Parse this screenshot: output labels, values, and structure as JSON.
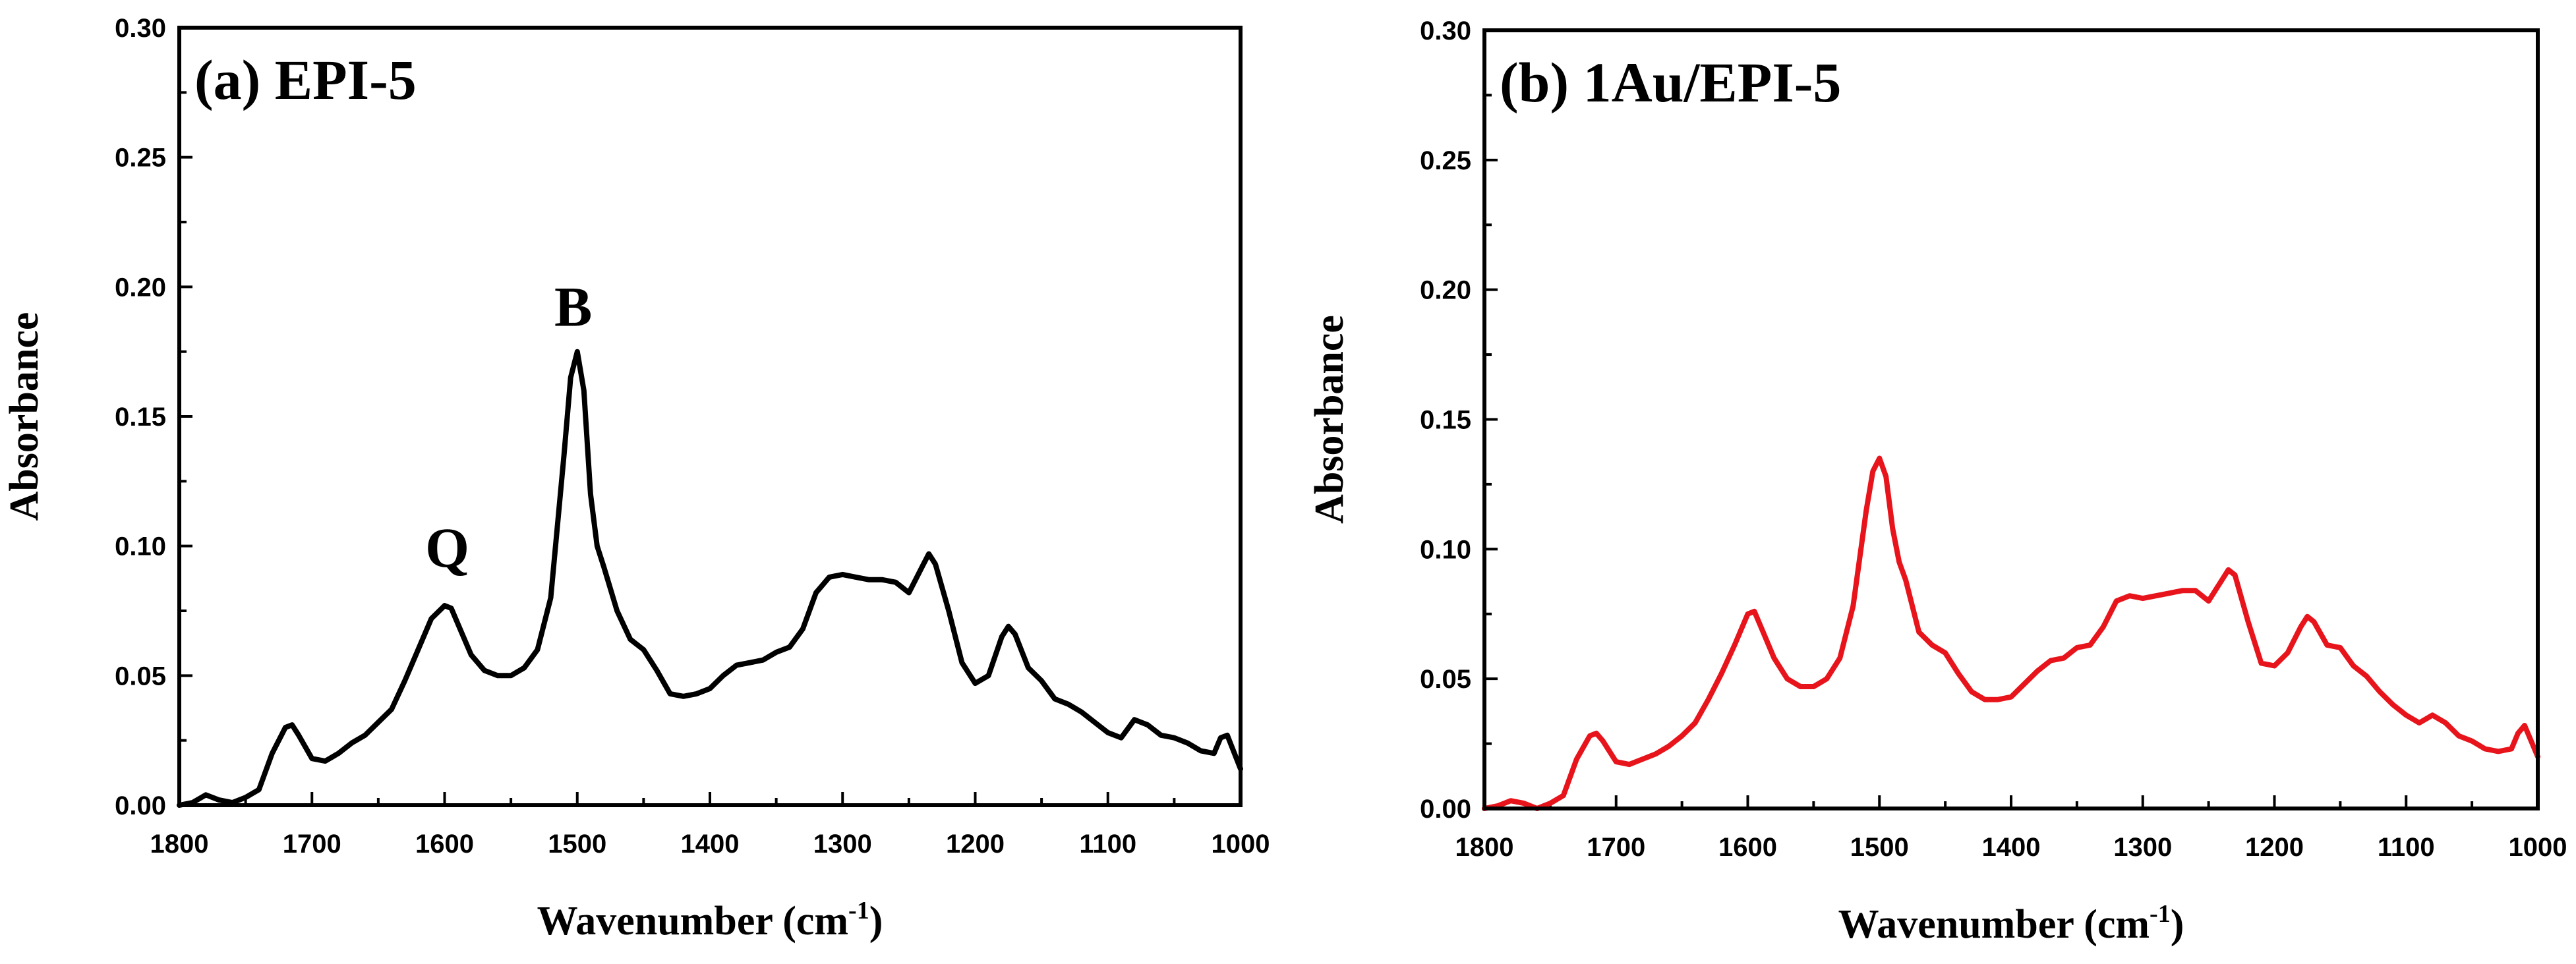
{
  "chart_data": [
    {
      "type": "line",
      "title": "(a) EPI-5",
      "xlabel": "Wavenumber (cm",
      "xlabel_sup": "-1",
      "xlabel_end": ")",
      "ylabel": "Absorbance",
      "xlim": [
        1800,
        1000
      ],
      "ylim": [
        0,
        0.3
      ],
      "xticks": [
        "1800",
        "1700",
        "1600",
        "1500",
        "1400",
        "1300",
        "1200",
        "1100",
        "1000"
      ],
      "yticks": [
        "0.00",
        "0.05",
        "0.10",
        "0.15",
        "0.20",
        "0.25",
        "0.30"
      ],
      "annotations": [
        {
          "text": "Q",
          "x": 1598,
          "y": 0.092
        },
        {
          "text": "B",
          "x": 1503,
          "y": 0.185
        }
      ],
      "series": [
        {
          "name": "EPI-5",
          "color": "#000000",
          "x": [
            1800,
            1790,
            1780,
            1770,
            1760,
            1750,
            1740,
            1730,
            1720,
            1715,
            1710,
            1700,
            1690,
            1680,
            1670,
            1660,
            1650,
            1640,
            1630,
            1620,
            1610,
            1600,
            1595,
            1590,
            1580,
            1570,
            1560,
            1550,
            1540,
            1530,
            1520,
            1510,
            1505,
            1500,
            1495,
            1490,
            1485,
            1480,
            1470,
            1460,
            1450,
            1440,
            1430,
            1420,
            1410,
            1400,
            1390,
            1380,
            1370,
            1360,
            1350,
            1340,
            1330,
            1320,
            1310,
            1300,
            1290,
            1280,
            1270,
            1260,
            1250,
            1240,
            1235,
            1230,
            1220,
            1210,
            1200,
            1190,
            1180,
            1175,
            1170,
            1160,
            1150,
            1140,
            1130,
            1120,
            1110,
            1100,
            1090,
            1080,
            1070,
            1060,
            1050,
            1040,
            1030,
            1020,
            1015,
            1010,
            1000
          ],
          "y": [
            0.0,
            0.001,
            0.004,
            0.002,
            0.001,
            0.003,
            0.006,
            0.02,
            0.03,
            0.031,
            0.027,
            0.018,
            0.017,
            0.02,
            0.024,
            0.027,
            0.032,
            0.037,
            0.048,
            0.06,
            0.072,
            0.077,
            0.076,
            0.07,
            0.058,
            0.052,
            0.05,
            0.05,
            0.053,
            0.06,
            0.08,
            0.135,
            0.165,
            0.175,
            0.16,
            0.12,
            0.1,
            0.092,
            0.075,
            0.064,
            0.06,
            0.052,
            0.043,
            0.042,
            0.043,
            0.045,
            0.05,
            0.054,
            0.055,
            0.056,
            0.059,
            0.061,
            0.068,
            0.082,
            0.088,
            0.089,
            0.088,
            0.087,
            0.087,
            0.086,
            0.082,
            0.092,
            0.097,
            0.093,
            0.075,
            0.055,
            0.047,
            0.05,
            0.065,
            0.069,
            0.066,
            0.053,
            0.048,
            0.041,
            0.039,
            0.036,
            0.032,
            0.028,
            0.026,
            0.033,
            0.031,
            0.027,
            0.026,
            0.024,
            0.021,
            0.02,
            0.026,
            0.027,
            0.014
          ]
        }
      ]
    },
    {
      "type": "line",
      "title": "(b) 1Au/EPI-5",
      "xlabel": "Wavenumber (cm",
      "xlabel_sup": "-1",
      "xlabel_end": ")",
      "ylabel": "Absorbance",
      "xlim": [
        1800,
        1000
      ],
      "ylim": [
        0,
        0.3
      ],
      "xticks": [
        "1800",
        "1700",
        "1600",
        "1500",
        "1400",
        "1300",
        "1200",
        "1100",
        "1000"
      ],
      "yticks": [
        "0.00",
        "0.05",
        "0.10",
        "0.15",
        "0.20",
        "0.25",
        "0.30"
      ],
      "annotations": [],
      "series": [
        {
          "name": "1Au/EPI-5",
          "color": "#e8141b",
          "x": [
            1800,
            1790,
            1780,
            1770,
            1760,
            1750,
            1740,
            1730,
            1720,
            1715,
            1710,
            1700,
            1690,
            1680,
            1670,
            1660,
            1650,
            1640,
            1630,
            1620,
            1610,
            1600,
            1595,
            1590,
            1580,
            1570,
            1560,
            1550,
            1540,
            1530,
            1520,
            1510,
            1505,
            1500,
            1495,
            1490,
            1485,
            1480,
            1470,
            1460,
            1450,
            1440,
            1430,
            1420,
            1410,
            1400,
            1390,
            1380,
            1370,
            1360,
            1350,
            1340,
            1330,
            1320,
            1310,
            1300,
            1290,
            1280,
            1270,
            1260,
            1250,
            1240,
            1235,
            1230,
            1220,
            1210,
            1200,
            1190,
            1180,
            1175,
            1170,
            1160,
            1150,
            1140,
            1130,
            1120,
            1110,
            1100,
            1090,
            1080,
            1070,
            1060,
            1050,
            1040,
            1030,
            1020,
            1015,
            1010,
            1000
          ],
          "y": [
            0.0,
            0.001,
            0.003,
            0.002,
            0.0,
            0.002,
            0.005,
            0.019,
            0.028,
            0.029,
            0.026,
            0.018,
            0.017,
            0.019,
            0.021,
            0.024,
            0.028,
            0.033,
            0.042,
            0.052,
            0.063,
            0.075,
            0.076,
            0.07,
            0.058,
            0.05,
            0.047,
            0.047,
            0.05,
            0.058,
            0.078,
            0.115,
            0.13,
            0.135,
            0.128,
            0.108,
            0.095,
            0.088,
            0.068,
            0.063,
            0.06,
            0.052,
            0.045,
            0.042,
            0.042,
            0.043,
            0.048,
            0.053,
            0.057,
            0.058,
            0.062,
            0.063,
            0.07,
            0.08,
            0.082,
            0.081,
            0.082,
            0.083,
            0.084,
            0.084,
            0.08,
            0.088,
            0.092,
            0.09,
            0.072,
            0.056,
            0.055,
            0.06,
            0.07,
            0.074,
            0.072,
            0.063,
            0.062,
            0.055,
            0.051,
            0.045,
            0.04,
            0.036,
            0.033,
            0.036,
            0.033,
            0.028,
            0.026,
            0.023,
            0.022,
            0.023,
            0.029,
            0.032,
            0.02
          ]
        }
      ]
    }
  ]
}
